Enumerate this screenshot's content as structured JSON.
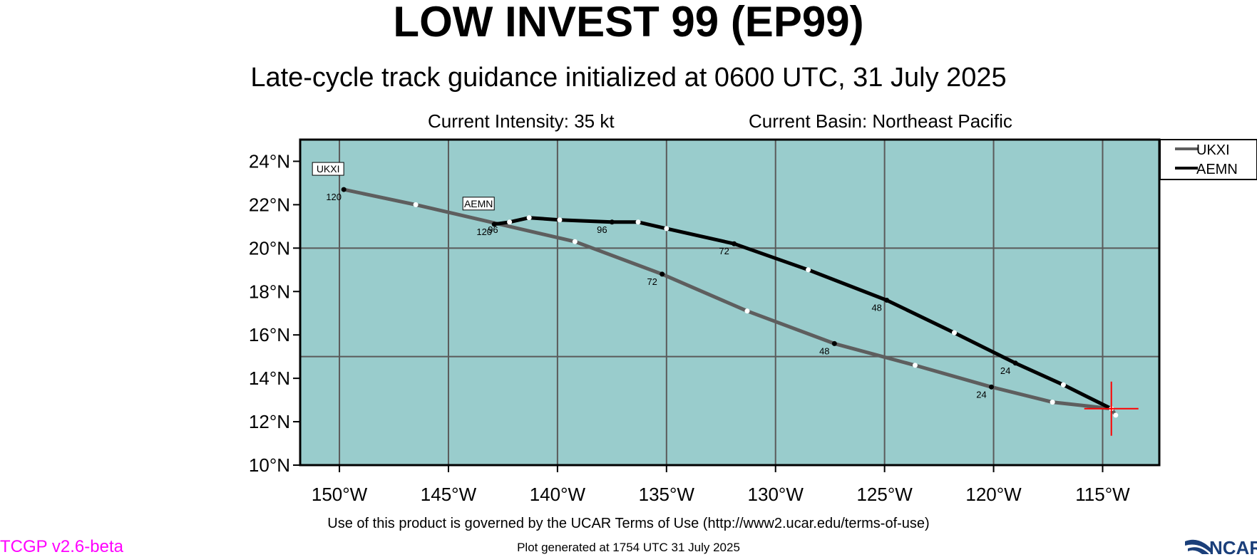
{
  "header": {
    "title": "LOW INVEST 99 (EP99)",
    "subtitle": "Late-cycle track guidance initialized at 0600 UTC, 31 July 2025",
    "intensity": "Current Intensity: 35 kt",
    "basin": "Current Basin: Northeast Pacific"
  },
  "footer": {
    "terms": "Use of this product is governed by the UCAR Terms of Use (http://www2.ucar.edu/terms-of-use)",
    "generated": "Plot generated at 1754 UTC   31 July 2025",
    "version": "TCGP v2.6-beta",
    "logo_text": "NCAR"
  },
  "colors": {
    "ocean": "#99cccc",
    "grid": "#5a5a5a",
    "current_position_marker": "#ff0000",
    "version_text": "#ff00ff"
  },
  "chart_data": {
    "type": "line",
    "xlim": [
      -151.8,
      -112.4
    ],
    "ylim": [
      10,
      25
    ],
    "x_ticks": [
      {
        "value": -150,
        "label": "150°W"
      },
      {
        "value": -145,
        "label": "145°W"
      },
      {
        "value": -140,
        "label": "140°W"
      },
      {
        "value": -135,
        "label": "135°W"
      },
      {
        "value": -130,
        "label": "130°W"
      },
      {
        "value": -125,
        "label": "125°W"
      },
      {
        "value": -120,
        "label": "120°W"
      },
      {
        "value": -115,
        "label": "115°W"
      }
    ],
    "y_ticks": [
      {
        "value": 24,
        "label": "24°N"
      },
      {
        "value": 22,
        "label": "22°N"
      },
      {
        "value": 20,
        "label": "20°N"
      },
      {
        "value": 18,
        "label": "18°N"
      },
      {
        "value": 16,
        "label": "16°N"
      },
      {
        "value": 14,
        "label": "14°N"
      },
      {
        "value": 12,
        "label": "12°N"
      },
      {
        "value": 10,
        "label": "10°N"
      }
    ],
    "grid_lon": [
      -150,
      -145,
      -140,
      -135,
      -130,
      -125,
      -120,
      -115
    ],
    "grid_lat": [
      20,
      15
    ],
    "current_position": {
      "lon": -114.6,
      "lat": 12.6
    },
    "legend_position": "top-right",
    "series": [
      {
        "name": "UKXI",
        "color": "#5e5e5e",
        "track": [
          [
            -114.4,
            12.3
          ],
          [
            -114.6,
            12.6
          ],
          [
            -117.3,
            12.9
          ],
          [
            -120.1,
            13.6
          ],
          [
            -123.6,
            14.6
          ],
          [
            -127.3,
            15.6
          ],
          [
            -131.3,
            17.1
          ],
          [
            -135.2,
            18.8
          ],
          [
            -139.2,
            20.3
          ],
          [
            -146.5,
            22.0
          ],
          [
            -149.8,
            22.7
          ]
        ],
        "labels": [
          {
            "lon": -120.1,
            "lat": 13.6,
            "text": "24"
          },
          {
            "lon": -127.3,
            "lat": 15.6,
            "text": "48"
          },
          {
            "lon": -135.2,
            "lat": 18.8,
            "text": "72"
          },
          {
            "lon": -142.5,
            "lat": 21.2,
            "text": "96"
          },
          {
            "lon": -149.8,
            "lat": 22.7,
            "text": "120"
          }
        ]
      },
      {
        "name": "AEMN",
        "color": "#000000",
        "track": [
          [
            -114.6,
            12.6
          ],
          [
            -116.8,
            13.7
          ],
          [
            -119.0,
            14.7
          ],
          [
            -121.8,
            16.1
          ],
          [
            -124.9,
            17.6
          ],
          [
            -128.5,
            19.0
          ],
          [
            -131.9,
            20.2
          ],
          [
            -135.0,
            20.9
          ],
          [
            -136.3,
            21.2
          ],
          [
            -137.5,
            21.2
          ],
          [
            -139.9,
            21.3
          ],
          [
            -141.3,
            21.4
          ],
          [
            -142.2,
            21.2
          ],
          [
            -142.9,
            21.1
          ]
        ],
        "labels": [
          {
            "lon": -119.0,
            "lat": 14.7,
            "text": "24"
          },
          {
            "lon": -124.9,
            "lat": 17.6,
            "text": "48"
          },
          {
            "lon": -131.9,
            "lat": 20.2,
            "text": "72"
          },
          {
            "lon": -137.5,
            "lat": 21.2,
            "text": "96"
          },
          {
            "lon": -142.9,
            "lat": 21.1,
            "text": "120"
          }
        ]
      }
    ]
  }
}
